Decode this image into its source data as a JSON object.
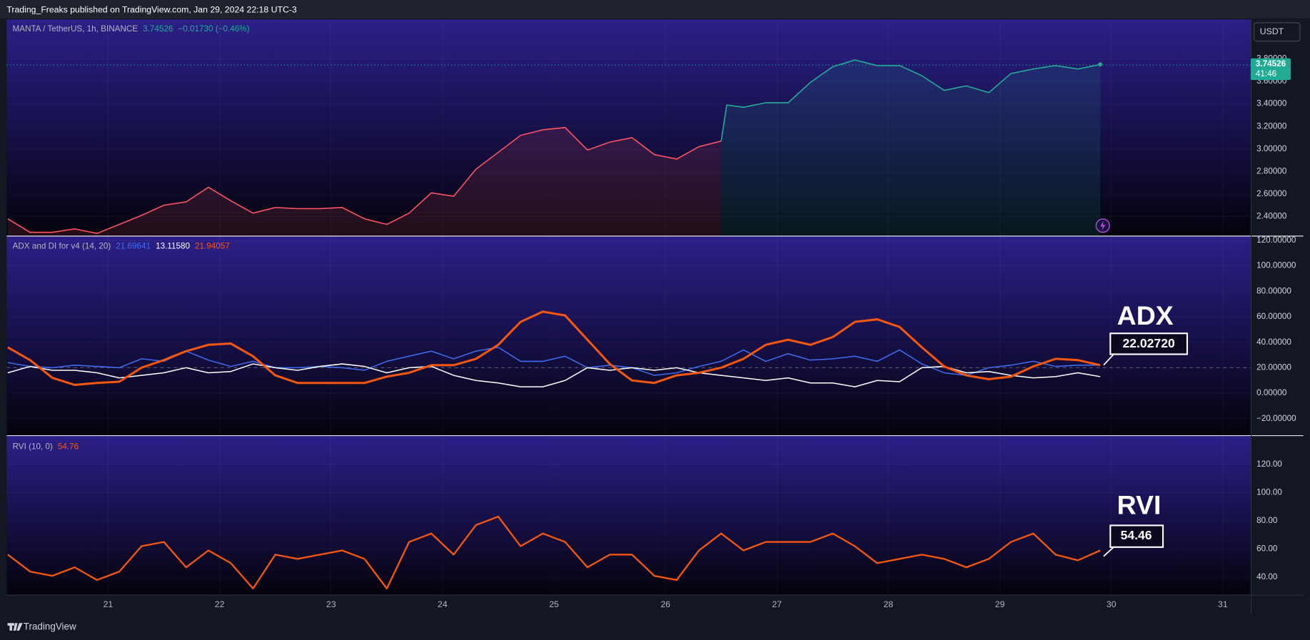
{
  "header": {
    "publisher": "Trading_Freaks published on TradingView.com, Jan 29, 2024 22:18 UTC-3",
    "currency": "USDT",
    "brand": "TradingView"
  },
  "chart_data": [
    {
      "type": "line",
      "title": "MANTA / TetherUS, 1h, BINANCE",
      "last": 3.74526,
      "change": "−0.01730 (−0.46%)",
      "countdown": "41:46",
      "ylim": [
        2.23,
        4.15
      ],
      "yticks": [
        {
          "value": 2.4,
          "label": "2.40000"
        },
        {
          "value": 2.6,
          "label": "2.60000"
        },
        {
          "value": 2.8,
          "label": "2.80000"
        },
        {
          "value": 3.0,
          "label": "3.00000"
        },
        {
          "value": 3.2,
          "label": "3.20000"
        },
        {
          "value": 3.4,
          "label": "3.40000"
        },
        {
          "value": 3.6,
          "label": "3.60000"
        },
        {
          "value": 3.8,
          "label": "3.80000"
        }
      ],
      "series": [
        {
          "color": "#f7525f",
          "x": [
            20.1,
            20.3,
            20.5,
            20.7,
            20.9,
            21.1,
            21.3,
            21.5,
            21.7,
            21.9,
            22.1,
            22.3,
            22.5,
            22.7,
            22.9,
            23.1,
            23.3,
            23.5,
            23.7,
            23.9,
            24.1,
            24.3,
            24.5,
            24.7,
            24.9,
            25.1,
            25.3,
            25.5,
            25.7,
            25.9,
            26.1,
            26.3,
            26.5
          ],
          "values": [
            2.38,
            2.26,
            2.26,
            2.29,
            2.25,
            2.33,
            2.41,
            2.5,
            2.53,
            2.66,
            2.54,
            2.43,
            2.48,
            2.47,
            2.47,
            2.48,
            2.38,
            2.33,
            2.43,
            2.61,
            2.58,
            2.82,
            2.97,
            3.12,
            3.17,
            3.19,
            2.99,
            3.06,
            3.1,
            2.95,
            2.91,
            3.02,
            3.07
          ]
        },
        {
          "color": "#22ab94",
          "x": [
            26.5,
            26.55,
            26.7,
            26.9,
            27.1,
            27.3,
            27.5,
            27.7,
            27.9,
            28.1,
            28.3,
            28.5,
            28.7,
            28.9,
            29.1,
            29.3,
            29.5,
            29.7,
            29.9
          ],
          "values": [
            3.07,
            3.39,
            3.37,
            3.41,
            3.41,
            3.59,
            3.73,
            3.79,
            3.74,
            3.74,
            3.65,
            3.52,
            3.56,
            3.5,
            3.67,
            3.71,
            3.74,
            3.71,
            3.75
          ]
        }
      ]
    },
    {
      "type": "line",
      "title": "ADX and DI for v4 (14, 20)",
      "hline": 20,
      "annotation": {
        "text": "ADX",
        "label": "22.02720"
      },
      "ylim": [
        -33,
        123
      ],
      "yticks": [
        {
          "value": -20,
          "label": "−20.00000"
        },
        {
          "value": 0,
          "label": "0.00000"
        },
        {
          "value": 20,
          "label": "20.00000"
        },
        {
          "value": 40,
          "label": "40.00000"
        },
        {
          "value": 60,
          "label": "60.00000"
        },
        {
          "value": 80,
          "label": "80.00000"
        },
        {
          "value": 100,
          "label": "100.00000"
        },
        {
          "value": 120,
          "label": "120.00000"
        }
      ],
      "x": [
        20.1,
        20.3,
        20.5,
        20.7,
        20.9,
        21.1,
        21.3,
        21.5,
        21.7,
        21.9,
        22.1,
        22.3,
        22.5,
        22.7,
        22.9,
        23.1,
        23.3,
        23.5,
        23.7,
        23.9,
        24.1,
        24.3,
        24.5,
        24.7,
        24.9,
        25.1,
        25.3,
        25.5,
        25.7,
        25.9,
        26.1,
        26.3,
        26.5,
        26.7,
        26.9,
        27.1,
        27.3,
        27.5,
        27.7,
        27.9,
        28.1,
        28.3,
        28.5,
        28.7,
        28.9,
        29.1,
        29.3,
        29.5,
        29.7,
        29.9
      ],
      "series": [
        {
          "color": "#3d6ef2",
          "width": 1.3,
          "value_label": "21.69641",
          "values": [
            24,
            21,
            20,
            22,
            21,
            20,
            27,
            25,
            33,
            26,
            21,
            25,
            20,
            20,
            21,
            20,
            18,
            25,
            29,
            33,
            27,
            33,
            36,
            25,
            25,
            29,
            20,
            22,
            20,
            14,
            16,
            21,
            25,
            34,
            25,
            31,
            26,
            27,
            29,
            25,
            34,
            23,
            16,
            14,
            20,
            22,
            25,
            21,
            22,
            22
          ]
        },
        {
          "color": "#ffffff",
          "width": 1.3,
          "value_label": "13.11580",
          "values": [
            16,
            21,
            18,
            18,
            16,
            12,
            14,
            16,
            20,
            16,
            17,
            23,
            20,
            18,
            21,
            23,
            21,
            16,
            20,
            21,
            14,
            10,
            8,
            5,
            5,
            10,
            20,
            18,
            20,
            18,
            20,
            16,
            14,
            12,
            10,
            12,
            8,
            8,
            5,
            10,
            9,
            20,
            21,
            16,
            17,
            14,
            12,
            13,
            16,
            13
          ]
        },
        {
          "color": "#f5570f",
          "width": 2.6,
          "value_label": "21.94057",
          "values": [
            36,
            26,
            12,
            6.5,
            8,
            9,
            20,
            26,
            33,
            38,
            39,
            29,
            14,
            8,
            8,
            8,
            8,
            13,
            16,
            22,
            22,
            27,
            38,
            56,
            64,
            61,
            42,
            23,
            10,
            8,
            14,
            16,
            20,
            27,
            38,
            42,
            38,
            44,
            56,
            58,
            52,
            36,
            21,
            14,
            11,
            13,
            21,
            27,
            26,
            22
          ]
        }
      ]
    },
    {
      "type": "line",
      "title": "RVI (10, 0)",
      "annotation": {
        "text": "RVI",
        "label": "54.46"
      },
      "ylim": [
        27.6,
        140.1
      ],
      "yticks": [
        {
          "value": 40,
          "label": "40.00"
        },
        {
          "value": 60,
          "label": "60.00"
        },
        {
          "value": 80,
          "label": "80.00"
        },
        {
          "value": 100,
          "label": "100.00"
        },
        {
          "value": 120,
          "label": "120.00"
        }
      ],
      "xlim": [
        20.09,
        31.25
      ],
      "xticks": [
        21,
        22,
        23,
        24,
        25,
        26,
        27,
        28,
        29,
        30,
        31
      ],
      "x": [
        20.1,
        20.3,
        20.5,
        20.7,
        20.9,
        21.1,
        21.3,
        21.5,
        21.7,
        21.9,
        22.1,
        22.3,
        22.5,
        22.7,
        22.9,
        23.1,
        23.3,
        23.5,
        23.7,
        23.9,
        24.1,
        24.3,
        24.5,
        24.7,
        24.9,
        25.1,
        25.3,
        25.5,
        25.7,
        25.9,
        26.1,
        26.3,
        26.5,
        26.7,
        26.9,
        27.1,
        27.3,
        27.5,
        27.7,
        27.9,
        28.1,
        28.3,
        28.5,
        28.7,
        28.9,
        29.1,
        29.3,
        29.5,
        29.7,
        29.9
      ],
      "series": [
        {
          "color": "#f5570f",
          "width": 2,
          "value_label": "54.76",
          "values": [
            56,
            44,
            41,
            47,
            38,
            44,
            62,
            65,
            47,
            59,
            50,
            32,
            56,
            53,
            56,
            59,
            53,
            32,
            65,
            71,
            56,
            77,
            83,
            62,
            71,
            65,
            47,
            56,
            56,
            41,
            38,
            59,
            71,
            59,
            65,
            65,
            65,
            71,
            62,
            50,
            53,
            56,
            53,
            47,
            53,
            65,
            71,
            56,
            52,
            59
          ]
        }
      ]
    }
  ]
}
